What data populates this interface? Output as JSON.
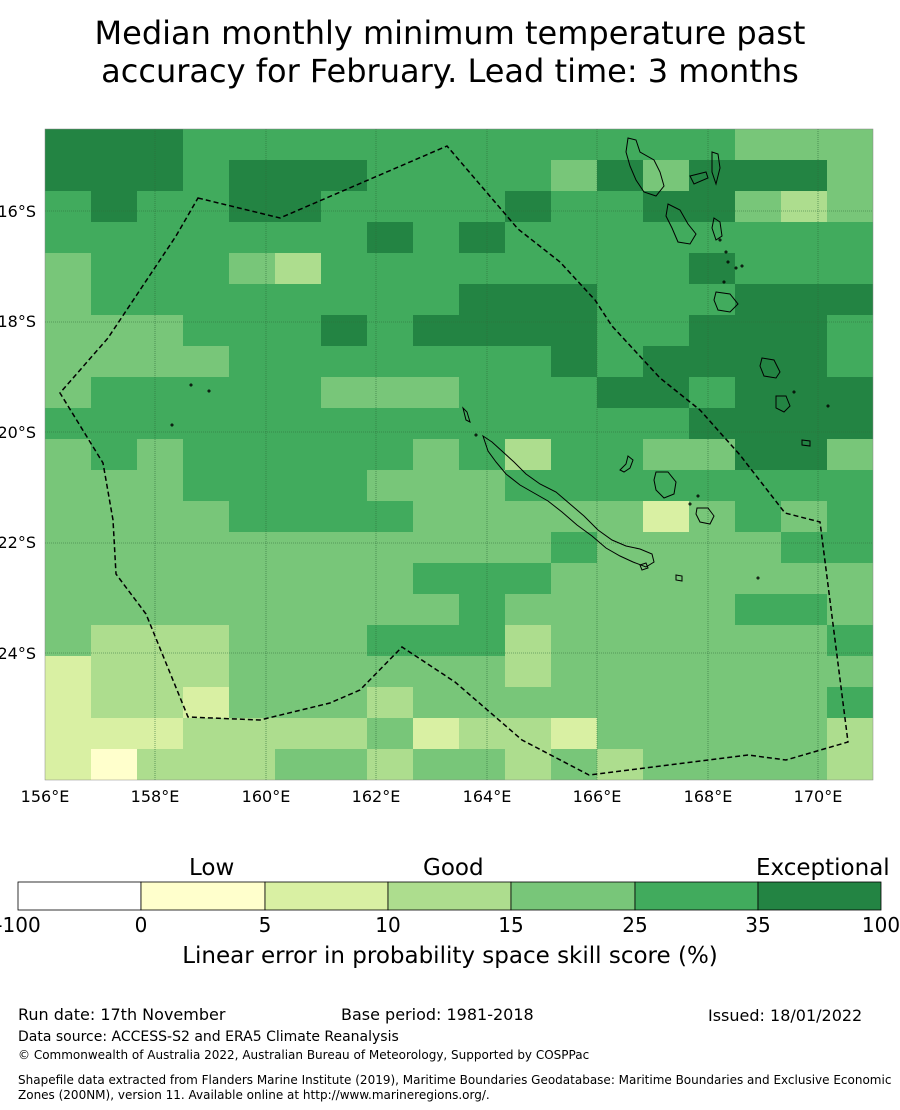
{
  "title": {
    "line1": "Median monthly minimum temperature past",
    "line2": "accuracy for February. Lead time: 3 months"
  },
  "map": {
    "lat_labels": [
      "16°S",
      "18°S",
      "20°S",
      "22°S",
      "24°S"
    ],
    "lon_labels": [
      "156°E",
      "158°E",
      "160°E",
      "162°E",
      "164°E",
      "166°E",
      "168°E",
      "170°E"
    ],
    "lon_range": [
      156,
      171
    ],
    "lat_range": [
      -26.3,
      -14.5
    ],
    "boundary_style": "dashed",
    "grid": true,
    "skill_grid_description": "Gridded skill score categories over New Caledonia EEZ, mostly 15-25% and 25-35% with 35-100% patches in the north and east and 0-10% patches in the southwest"
  },
  "colorbar": {
    "levels": [
      "Low",
      "Good",
      "Exceptional"
    ],
    "ticks": [
      "-100",
      "0",
      "5",
      "10",
      "15",
      "25",
      "35",
      "100"
    ],
    "colors": [
      "#ffffff",
      "#ffffcc",
      "#d9f0a3",
      "#addd8e",
      "#78c679",
      "#41ab5d",
      "#238443"
    ],
    "label": "Linear error in probability space skill score (%)"
  },
  "footer": {
    "run_date": "Run date: 17th November",
    "base_period": "Base period: 1981-2018",
    "issued": "Issued: 18/01/2022",
    "data_source": "Data source: ACCESS-S2 and ERA5 Climate Reanalysis",
    "copyright": "© Commonwealth of Australia 2022, Australian Bureau of Meteorology, Supported by COSPPac",
    "shapefile_line1": "Shapefile data extracted from Flanders Marine Institute (2019), Maritime Boundaries Geodatabase: Maritime Boundaries and Exclusive Economic",
    "shapefile_line2": "Zones (200NM), version 11. Available online at http://www.marineregions.org/."
  }
}
